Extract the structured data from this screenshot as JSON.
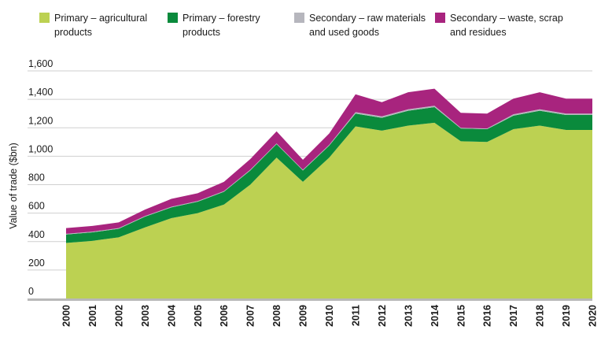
{
  "chart_data": {
    "type": "area",
    "stacked": true,
    "title": "",
    "xlabel": "",
    "ylabel": "Value of trade ($bn)",
    "ylim": [
      0,
      1600
    ],
    "yticks": [
      "0",
      "200",
      "400",
      "600",
      "800",
      "1,000",
      "1,200",
      "1,400",
      "1,600"
    ],
    "ytick_values": [
      0,
      200,
      400,
      600,
      800,
      1000,
      1200,
      1400,
      1600
    ],
    "grid": true,
    "legend_position": "top",
    "x": [
      "2000",
      "2001",
      "2002",
      "2003",
      "2004",
      "2005",
      "2006",
      "2007",
      "2008",
      "2009",
      "2010",
      "2011",
      "2012",
      "2013",
      "2014",
      "2015",
      "2016",
      "2017",
      "2018",
      "2019",
      "2020"
    ],
    "series": [
      {
        "name": "Primary – agricultural products",
        "color": "#bcd152",
        "values": [
          390,
          405,
          430,
          500,
          565,
          600,
          660,
          800,
          990,
          820,
          990,
          1210,
          1180,
          1215,
          1235,
          1105,
          1100,
          1190,
          1215,
          1185,
          1185
        ]
      },
      {
        "name": "Primary – forestry products",
        "color": "#0a8a3c",
        "values": [
          60,
          60,
          60,
          75,
          75,
          80,
          90,
          100,
          95,
          80,
          85,
          90,
          90,
          105,
          110,
          90,
          90,
          95,
          105,
          105,
          105
        ]
      },
      {
        "name": "Secondary – raw materials and used goods",
        "color": "#b6b6bd",
        "values": [
          5,
          5,
          5,
          5,
          5,
          5,
          5,
          5,
          5,
          5,
          5,
          10,
          10,
          10,
          10,
          5,
          5,
          10,
          10,
          10,
          10
        ]
      },
      {
        "name": "Secondary – waste, scrap and residues",
        "color": "#a8247e",
        "values": [
          40,
          40,
          40,
          45,
          55,
          55,
          65,
          75,
          85,
          70,
          80,
          125,
          100,
          120,
          120,
          105,
          105,
          110,
          120,
          105,
          105
        ]
      }
    ]
  }
}
